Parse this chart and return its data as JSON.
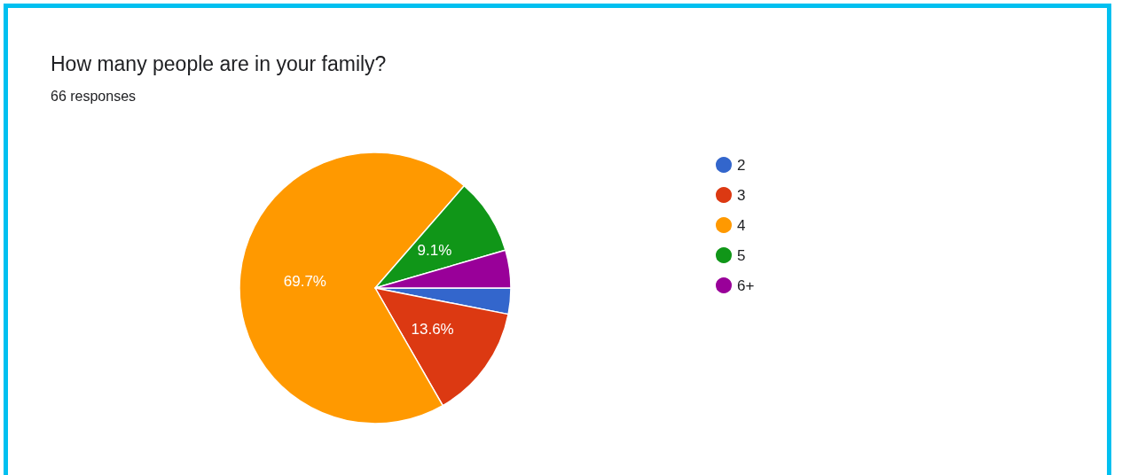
{
  "chart_data": {
    "type": "pie",
    "title": "How many people are in your family?",
    "subtitle": "66 responses",
    "categories": [
      "2",
      "3",
      "4",
      "5",
      "6+"
    ],
    "values": [
      3.1,
      13.6,
      69.7,
      9.1,
      4.5
    ],
    "colors": [
      "#3366cc",
      "#dc3912",
      "#ff9900",
      "#109618",
      "#990099"
    ],
    "value_labels": [
      null,
      "13.6%",
      "69.7%",
      "9.1%",
      null
    ],
    "legend": "right"
  }
}
